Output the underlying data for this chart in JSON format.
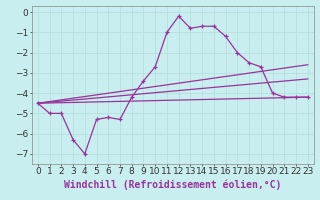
{
  "xlabel": "Windchill (Refroidissement éolien,°C)",
  "bg_color": "#c8eef0",
  "line_color": "#993399",
  "grid_color": "#b8dfe0",
  "xlim": [
    -0.5,
    23.5
  ],
  "ylim": [
    -7.5,
    0.3
  ],
  "xticks": [
    0,
    1,
    2,
    3,
    4,
    5,
    6,
    7,
    8,
    9,
    10,
    11,
    12,
    13,
    14,
    15,
    16,
    17,
    18,
    19,
    20,
    21,
    22,
    23
  ],
  "yticks": [
    0,
    -1,
    -2,
    -3,
    -4,
    -5,
    -6,
    -7
  ],
  "line1_x": [
    0,
    1,
    2,
    3,
    4,
    5,
    6,
    7,
    8,
    9,
    10,
    11,
    12,
    13,
    14,
    15,
    16,
    17,
    18,
    19,
    20,
    21,
    22,
    23
  ],
  "line1_y": [
    -4.5,
    -5.0,
    -5.0,
    -6.3,
    -7.0,
    -5.3,
    -5.2,
    -5.3,
    -4.2,
    -3.4,
    -2.7,
    -1.0,
    -0.2,
    -0.8,
    -0.7,
    -0.7,
    -1.2,
    -2.0,
    -2.5,
    -2.7,
    -4.0,
    -4.2,
    -4.2,
    -4.2
  ],
  "line2_x": [
    0,
    23
  ],
  "line2_y": [
    -4.5,
    -2.6
  ],
  "line3_x": [
    0,
    23
  ],
  "line3_y": [
    -4.5,
    -3.3
  ],
  "line4_x": [
    0,
    23
  ],
  "line4_y": [
    -4.5,
    -4.2
  ],
  "xlabel_fontsize": 7,
  "tick_fontsize": 6.5,
  "xlabel_color": "#993399"
}
